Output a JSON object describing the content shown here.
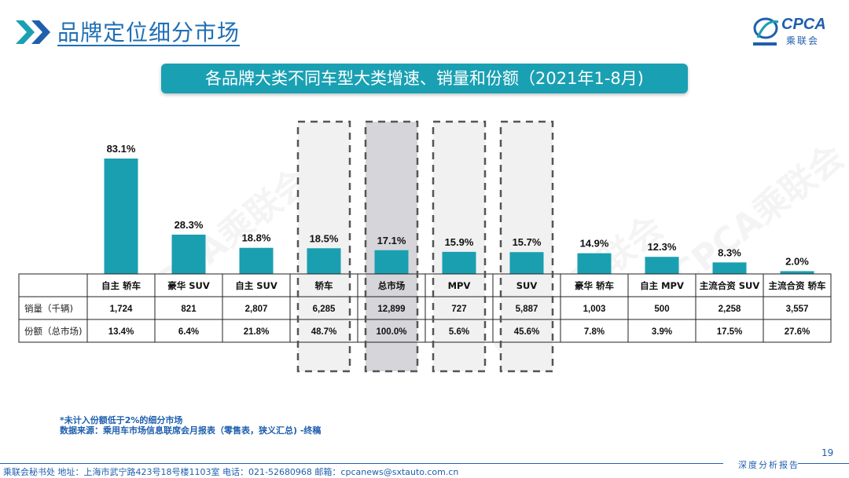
{
  "header": {
    "title": "品牌定位细分市场"
  },
  "logo": {
    "text": "CPCA",
    "sub": "乘联会"
  },
  "banner": {
    "text": "各品牌大类不同车型大类增速、销量和份额（2021年1-8月)"
  },
  "colors": {
    "bar": "#1a9fb0",
    "accent": "#1e5fae",
    "banner": "#1aa0b3",
    "highlight_total": "#d6d5da",
    "highlight": "#f1f1f1"
  },
  "chart_data": {
    "type": "bar",
    "categories": [
      "自主 轿车",
      "豪华 SUV",
      "自主 SUV",
      "轿车",
      "总市场",
      "MPV",
      "SUV",
      "豪华 轿车",
      "自主 MPV",
      "主流合资 SUV",
      "主流合资 轿车"
    ],
    "series": [
      {
        "values": [
          83.1,
          28.3,
          18.8,
          18.5,
          17.1,
          15.9,
          15.7,
          14.9,
          12.3,
          8.3,
          2.0
        ]
      }
    ],
    "value_labels": [
      "83.1%",
      "28.3%",
      "18.8%",
      "18.5%",
      "17.1%",
      "15.9%",
      "15.7%",
      "14.9%",
      "12.3%",
      "8.3%",
      "2.0%"
    ],
    "highlighted": [
      "轿车",
      "总市场",
      "MPV",
      "SUV"
    ],
    "ylim": [
      0,
      90
    ],
    "table": {
      "rows": [
        {
          "label": "销量（千辆)",
          "values": [
            "1,724",
            "821",
            "2,807",
            "6,285",
            "12,899",
            "727",
            "5,887",
            "1,003",
            "500",
            "2,258",
            "3,557"
          ]
        },
        {
          "label": "份额（总市场)",
          "values": [
            "13.4%",
            "6.4%",
            "21.8%",
            "48.7%",
            "100.0%",
            "5.6%",
            "45.6%",
            "7.8%",
            "3.9%",
            "17.5%",
            "27.6%"
          ]
        }
      ]
    }
  },
  "notes": {
    "line1": "*未计入份额低于2%的细分市场",
    "line2": "数据来源：乘用车市场信息联席会月报表（零售表，狭义汇总) -终稿"
  },
  "watermark": "CPCA乘联会",
  "page_number": "19",
  "footer": {
    "text": "乘联会秘书处   地址：上海市武宁路423号18号楼1103室  电话：021-52680968   邮箱：cpcanews@sxtauto.com.cn",
    "brand": "深度分析报告"
  }
}
